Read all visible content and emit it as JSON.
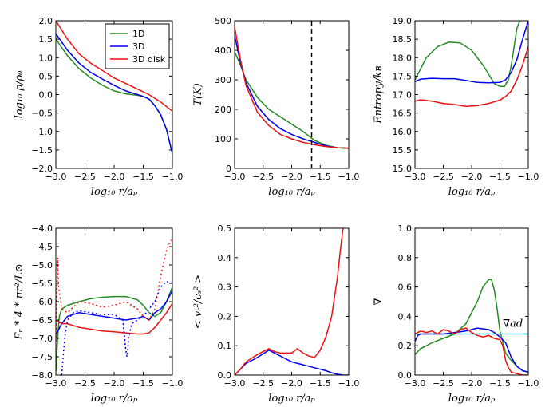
{
  "colors": {
    "green": "#228b22",
    "blue": "#0000ee",
    "red": "#ee1111",
    "cyan": "#33cccc",
    "black": "#000000"
  },
  "chart_data": [
    {
      "type": "line",
      "title": "",
      "xlabel": "log₁₀ r/aₚ",
      "ylabel": "log₁₀ ρ/ρ₀",
      "xlim": [
        -3.0,
        -1.0
      ],
      "ylim": [
        -2.0,
        2.0
      ],
      "xticks": [
        -3.0,
        -2.5,
        -2.0,
        -1.5,
        -1.0
      ],
      "xtick_labels": [
        "−3.0",
        "−2.5",
        "−2.0",
        "−1.5",
        "−1.0"
      ],
      "yticks": [
        -2.0,
        -1.5,
        -1.0,
        -0.5,
        0.0,
        0.5,
        1.0,
        1.5,
        2.0
      ],
      "ytick_labels": [
        "−2.0",
        "−1.5",
        "−1.0",
        "−0.5",
        "0.0",
        "0.5",
        "1.0",
        "1.5",
        "2.0"
      ],
      "legend": {
        "position": "top-right",
        "entries": [
          "1D",
          "3D",
          "3D disk"
        ]
      },
      "series": [
        {
          "name": "1D",
          "color": "green",
          "style": "solid",
          "x": [
            -3.0,
            -2.8,
            -2.6,
            -2.4,
            -2.2,
            -2.0,
            -1.8,
            -1.6,
            -1.5,
            -1.4,
            -1.3,
            -1.2,
            -1.1,
            -1.0
          ],
          "y": [
            1.5,
            1.05,
            0.7,
            0.45,
            0.25,
            0.1,
            0.02,
            -0.02,
            -0.05,
            -0.12,
            -0.3,
            -0.55,
            -0.95,
            -1.6
          ]
        },
        {
          "name": "3D",
          "color": "blue",
          "style": "solid",
          "x": [
            -3.0,
            -2.8,
            -2.6,
            -2.4,
            -2.2,
            -2.0,
            -1.8,
            -1.6,
            -1.5,
            -1.4,
            -1.3,
            -1.2,
            -1.1,
            -1.0
          ],
          "y": [
            1.65,
            1.2,
            0.85,
            0.6,
            0.42,
            0.25,
            0.1,
            0.0,
            -0.05,
            -0.12,
            -0.3,
            -0.55,
            -0.95,
            -1.6
          ]
        },
        {
          "name": "3D disk",
          "color": "red",
          "style": "solid",
          "x": [
            -3.0,
            -2.8,
            -2.6,
            -2.4,
            -2.2,
            -2.0,
            -1.8,
            -1.6,
            -1.4,
            -1.2,
            -1.0
          ],
          "y": [
            2.0,
            1.5,
            1.1,
            0.85,
            0.65,
            0.45,
            0.3,
            0.15,
            0.0,
            -0.2,
            -0.45
          ]
        }
      ]
    },
    {
      "type": "line",
      "title": "",
      "xlabel": "log₁₀ r/aₚ",
      "ylabel": "T(K)",
      "xlim": [
        -3.0,
        -1.0
      ],
      "ylim": [
        0,
        500
      ],
      "xticks": [
        -3.0,
        -2.5,
        -2.0,
        -1.5,
        -1.0
      ],
      "xtick_labels": [
        "−3.0",
        "−2.5",
        "−2.0",
        "−1.5",
        "−1.0"
      ],
      "yticks": [
        0,
        100,
        200,
        300,
        400,
        500
      ],
      "ytick_labels": [
        "0",
        "100",
        "200",
        "300",
        "400",
        "500"
      ],
      "vline": {
        "x": -1.65,
        "style": "dashed",
        "color": "black"
      },
      "series": [
        {
          "name": "1D",
          "color": "green",
          "style": "solid",
          "x": [
            -3.0,
            -2.9,
            -2.8,
            -2.6,
            -2.4,
            -2.2,
            -2.0,
            -1.8,
            -1.6,
            -1.4,
            -1.2,
            -1.0
          ],
          "y": [
            395,
            350,
            300,
            240,
            200,
            175,
            150,
            125,
            95,
            78,
            70,
            68
          ]
        },
        {
          "name": "3D",
          "color": "blue",
          "style": "solid",
          "x": [
            -3.0,
            -2.9,
            -2.8,
            -2.6,
            -2.4,
            -2.2,
            -2.0,
            -1.8,
            -1.6,
            -1.4,
            -1.2,
            -1.0
          ],
          "y": [
            450,
            360,
            290,
            210,
            165,
            135,
            115,
            100,
            88,
            76,
            70,
            68
          ]
        },
        {
          "name": "3D disk",
          "color": "red",
          "style": "solid",
          "x": [
            -3.0,
            -2.9,
            -2.8,
            -2.6,
            -2.4,
            -2.2,
            -2.0,
            -1.8,
            -1.6,
            -1.4,
            -1.2,
            -1.0
          ],
          "y": [
            480,
            370,
            280,
            190,
            145,
            115,
            100,
            88,
            80,
            74,
            70,
            68
          ]
        }
      ]
    },
    {
      "type": "line",
      "title": "",
      "xlabel": "log₁₀ r/aₚ",
      "ylabel": "Entropy/kʙ",
      "xlim": [
        -3.0,
        -1.0
      ],
      "ylim": [
        15.0,
        19.0
      ],
      "xticks": [
        -3.0,
        -2.5,
        -2.0,
        -1.5,
        -1.0
      ],
      "xtick_labels": [
        "−3.0",
        "−2.5",
        "−2.0",
        "−1.5",
        "−1.0"
      ],
      "yticks": [
        15.0,
        15.5,
        16.0,
        16.5,
        17.0,
        17.5,
        18.0,
        18.5,
        19.0
      ],
      "ytick_labels": [
        "15.0",
        "15.5",
        "16.0",
        "16.5",
        "17.0",
        "17.5",
        "18.0",
        "18.5",
        "19.0"
      ],
      "series": [
        {
          "name": "1D",
          "color": "green",
          "style": "solid",
          "x": [
            -3.0,
            -2.8,
            -2.6,
            -2.4,
            -2.2,
            -2.0,
            -1.8,
            -1.6,
            -1.5,
            -1.42,
            -1.35,
            -1.3,
            -1.25,
            -1.2,
            -1.15
          ],
          "y": [
            17.4,
            18.0,
            18.3,
            18.42,
            18.4,
            18.2,
            17.8,
            17.3,
            17.22,
            17.22,
            17.4,
            17.8,
            18.3,
            18.8,
            19.0
          ]
        },
        {
          "name": "3D",
          "color": "blue",
          "style": "solid",
          "x": [
            -3.0,
            -2.9,
            -2.7,
            -2.5,
            -2.3,
            -2.1,
            -1.9,
            -1.7,
            -1.5,
            -1.4,
            -1.3,
            -1.2,
            -1.1,
            -1.0
          ],
          "y": [
            17.35,
            17.42,
            17.44,
            17.43,
            17.43,
            17.38,
            17.33,
            17.32,
            17.33,
            17.4,
            17.6,
            17.95,
            18.5,
            19.0
          ]
        },
        {
          "name": "3D disk",
          "color": "red",
          "style": "solid",
          "x": [
            -3.0,
            -2.9,
            -2.7,
            -2.5,
            -2.3,
            -2.1,
            -1.9,
            -1.7,
            -1.5,
            -1.4,
            -1.3,
            -1.2,
            -1.1,
            -1.0
          ],
          "y": [
            16.82,
            16.86,
            16.82,
            16.76,
            16.73,
            16.68,
            16.7,
            16.76,
            16.85,
            16.95,
            17.1,
            17.4,
            17.8,
            18.3
          ]
        }
      ]
    },
    {
      "type": "line",
      "title": "",
      "xlabel": "log₁₀ r/aₚ",
      "ylabel": "Fᵣ * 4 * πr²/L⊙",
      "xlim": [
        -3.0,
        -1.0
      ],
      "ylim": [
        -8.0,
        -4.0
      ],
      "xticks": [
        -3.0,
        -2.5,
        -2.0,
        -1.5,
        -1.0
      ],
      "xtick_labels": [
        "−3.0",
        "−2.5",
        "−2.0",
        "−1.5",
        "−1.0"
      ],
      "yticks": [
        -8.0,
        -7.5,
        -7.0,
        -6.5,
        -6.0,
        -5.5,
        -5.0,
        -4.5,
        -4.0
      ],
      "ytick_labels": [
        "−8.0",
        "−7.5",
        "−7.0",
        "−6.5",
        "−6.0",
        "−5.5",
        "−5.0",
        "−4.5",
        "−4.0"
      ],
      "series": [
        {
          "name": "1D",
          "color": "green",
          "style": "solid",
          "x": [
            -3.0,
            -2.97,
            -2.94,
            -2.9,
            -2.8,
            -2.6,
            -2.4,
            -2.2,
            -2.0,
            -1.8,
            -1.6,
            -1.5,
            -1.4,
            -1.3,
            -1.2,
            -1.1,
            -1.0
          ],
          "y": [
            -7.9,
            -7.0,
            -6.4,
            -6.2,
            -6.1,
            -6.0,
            -5.92,
            -5.88,
            -5.86,
            -5.86,
            -5.95,
            -6.1,
            -6.3,
            -6.4,
            -6.3,
            -6.0,
            -5.6
          ]
        },
        {
          "name": "3D",
          "color": "blue",
          "style": "solid",
          "x": [
            -3.0,
            -2.9,
            -2.8,
            -2.6,
            -2.4,
            -2.2,
            -2.0,
            -1.8,
            -1.6,
            -1.5,
            -1.4,
            -1.3,
            -1.2,
            -1.1,
            -1.0
          ],
          "y": [
            -6.9,
            -6.6,
            -6.4,
            -6.3,
            -6.35,
            -6.4,
            -6.45,
            -6.5,
            -6.45,
            -6.4,
            -6.5,
            -6.3,
            -6.2,
            -6.0,
            -5.7
          ]
        },
        {
          "name": "3D disk",
          "color": "red",
          "style": "solid",
          "x": [
            -3.0,
            -2.9,
            -2.8,
            -2.6,
            -2.4,
            -2.2,
            -2.0,
            -1.8,
            -1.6,
            -1.5,
            -1.4,
            -1.3,
            -1.2,
            -1.1,
            -1.0
          ],
          "y": [
            -6.5,
            -6.6,
            -6.6,
            -6.7,
            -6.75,
            -6.8,
            -6.82,
            -6.85,
            -6.88,
            -6.88,
            -6.85,
            -6.7,
            -6.5,
            -6.3,
            -6.05
          ]
        },
        {
          "name": "3D dotted",
          "color": "blue",
          "style": "dotted",
          "x": [
            -2.9,
            -2.87,
            -2.84,
            -2.8,
            -2.7,
            -2.6,
            -2.4,
            -2.2,
            -2.0,
            -1.85,
            -1.8,
            -1.78,
            -1.75,
            -1.7,
            -1.5,
            -1.3,
            -1.2,
            -1.1,
            -1.0
          ],
          "y": [
            -8.0,
            -7.4,
            -6.9,
            -6.5,
            -6.3,
            -6.25,
            -6.3,
            -6.35,
            -6.35,
            -6.5,
            -7.3,
            -7.5,
            -7.0,
            -6.6,
            -6.4,
            -6.0,
            -5.6,
            -5.45,
            -5.5
          ]
        },
        {
          "name": "3D disk dotted",
          "color": "red",
          "style": "dotted",
          "x": [
            -3.0,
            -2.97,
            -2.95,
            -2.9,
            -2.8,
            -2.6,
            -2.4,
            -2.2,
            -2.0,
            -1.8,
            -1.6,
            -1.5,
            -1.4,
            -1.3,
            -1.2,
            -1.1,
            -1.05,
            -1.0
          ],
          "y": [
            -7.3,
            -4.8,
            -5.6,
            -6.2,
            -6.3,
            -6.0,
            -6.05,
            -6.15,
            -6.1,
            -6.0,
            -6.2,
            -6.4,
            -6.5,
            -6.2,
            -5.3,
            -4.6,
            -4.4,
            -4.3
          ]
        }
      ]
    },
    {
      "type": "line",
      "title": "",
      "xlabel": "log₁₀ r/aₚ",
      "ylabel": "< vᵣ²/cₛ² >",
      "xlim": [
        -3.0,
        -1.0
      ],
      "ylim": [
        0.0,
        0.5
      ],
      "xticks": [
        -3.0,
        -2.5,
        -2.0,
        -1.5,
        -1.0
      ],
      "xtick_labels": [
        "−3.0",
        "−2.5",
        "−2.0",
        "−1.5",
        "−1.0"
      ],
      "yticks": [
        0.0,
        0.1,
        0.2,
        0.3,
        0.4,
        0.5
      ],
      "ytick_labels": [
        "0.0",
        "0.1",
        "0.2",
        "0.3",
        "0.4",
        "0.5"
      ],
      "series": [
        {
          "name": "3D",
          "color": "blue",
          "style": "solid",
          "x": [
            -3.0,
            -2.9,
            -2.8,
            -2.6,
            -2.4,
            -2.2,
            -2.0,
            -1.8,
            -1.6,
            -1.5,
            -1.4,
            -1.3,
            -1.2,
            -1.1,
            -1.0
          ],
          "y": [
            0.0,
            0.02,
            0.04,
            0.06,
            0.085,
            0.065,
            0.045,
            0.035,
            0.025,
            0.02,
            0.015,
            0.008,
            0.003,
            0.0,
            0.0
          ]
        },
        {
          "name": "3D disk",
          "color": "red",
          "style": "solid",
          "x": [
            -3.0,
            -2.9,
            -2.8,
            -2.6,
            -2.4,
            -2.3,
            -2.2,
            -2.0,
            -1.9,
            -1.8,
            -1.7,
            -1.6,
            -1.5,
            -1.4,
            -1.3,
            -1.2,
            -1.15,
            -1.1
          ],
          "y": [
            0.0,
            0.02,
            0.045,
            0.07,
            0.09,
            0.08,
            0.075,
            0.075,
            0.09,
            0.075,
            0.065,
            0.06,
            0.085,
            0.13,
            0.2,
            0.33,
            0.42,
            0.5
          ]
        }
      ]
    },
    {
      "type": "line",
      "title": "",
      "xlabel": "log₁₀ r/aₚ",
      "ylabel": "∇",
      "xlim": [
        -3.0,
        -1.0
      ],
      "ylim": [
        0.0,
        1.0
      ],
      "xticks": [
        -3.0,
        -2.5,
        -2.0,
        -1.5,
        -1.0
      ],
      "xtick_labels": [
        "−3.0",
        "−2.5",
        "−2.0",
        "−1.5",
        "−1.0"
      ],
      "yticks": [
        0.0,
        0.2,
        0.4,
        0.6,
        0.8,
        1.0
      ],
      "ytick_labels": [
        "0.0",
        "0.2",
        "0.4",
        "0.6",
        "0.8",
        "1.0"
      ],
      "annotation": {
        "text": "∇ad",
        "x": -1.45,
        "y": 0.33
      },
      "series": [
        {
          "name": "∇ad",
          "color": "cyan",
          "style": "solid",
          "x": [
            -3.0,
            -1.0
          ],
          "y": [
            0.28,
            0.28
          ]
        },
        {
          "name": "1D",
          "color": "green",
          "style": "solid",
          "x": [
            -3.0,
            -2.9,
            -2.7,
            -2.5,
            -2.3,
            -2.1,
            -1.9,
            -1.8,
            -1.7,
            -1.65,
            -1.6,
            -1.55,
            -1.5,
            -1.4,
            -1.3,
            -1.2,
            -1.1,
            -1.0
          ],
          "y": [
            0.14,
            0.18,
            0.22,
            0.25,
            0.28,
            0.35,
            0.5,
            0.6,
            0.65,
            0.65,
            0.58,
            0.45,
            0.3,
            0.15,
            0.1,
            0.06,
            0.03,
            0.02
          ]
        },
        {
          "name": "3D",
          "color": "blue",
          "style": "solid",
          "x": [
            -3.0,
            -2.95,
            -2.9,
            -2.7,
            -2.5,
            -2.3,
            -2.1,
            -1.9,
            -1.7,
            -1.6,
            -1.5,
            -1.4,
            -1.3,
            -1.2,
            -1.1,
            -1.0
          ],
          "y": [
            0.23,
            0.27,
            0.28,
            0.28,
            0.28,
            0.29,
            0.3,
            0.32,
            0.31,
            0.29,
            0.26,
            0.22,
            0.12,
            0.06,
            0.03,
            0.02
          ]
        },
        {
          "name": "3D disk",
          "color": "red",
          "style": "solid",
          "x": [
            -3.0,
            -2.9,
            -2.8,
            -2.7,
            -2.6,
            -2.5,
            -2.4,
            -2.3,
            -2.2,
            -2.1,
            -2.0,
            -1.9,
            -1.8,
            -1.7,
            -1.6,
            -1.5,
            -1.45,
            -1.4,
            -1.35,
            -1.3,
            -1.2,
            -1.1,
            -1.0
          ],
          "y": [
            0.28,
            0.3,
            0.29,
            0.3,
            0.28,
            0.31,
            0.3,
            0.28,
            0.31,
            0.32,
            0.29,
            0.27,
            0.26,
            0.27,
            0.25,
            0.24,
            0.2,
            0.1,
            0.05,
            0.02,
            0.01,
            0.0,
            0.0
          ]
        }
      ]
    }
  ]
}
